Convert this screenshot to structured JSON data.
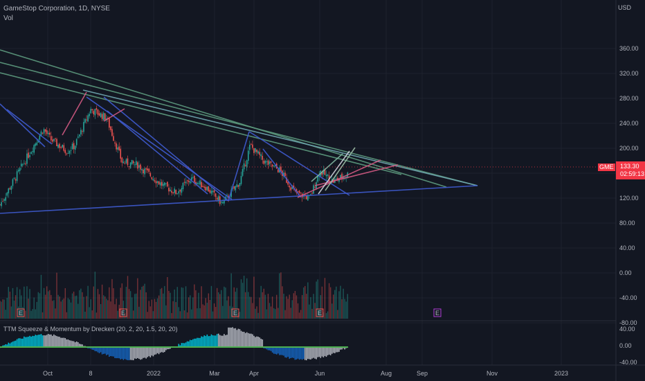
{
  "header": {
    "symbol": "GameStop Corporation, 1D, NYSE",
    "vol_label": "Vol",
    "indicator": "TTM Squeeze & Momentum by Drecken (20, 2, 20, 1.5, 20, 20)"
  },
  "price_axis": {
    "currency": "USD",
    "ticks": [
      "360.00",
      "320.00",
      "280.00",
      "240.00",
      "200.00",
      "160.00",
      "120.00",
      "80.00",
      "40.00",
      "0.00",
      "-40.00",
      "-80.00"
    ],
    "current_symbol": "GME",
    "current_price": "133.30",
    "countdown": "02:59:13"
  },
  "osc_axis": {
    "ticks": [
      "40.00",
      "0.00",
      "-40.00"
    ]
  },
  "time_axis": {
    "labels": [
      "Oct",
      "8",
      "2022",
      "Mar",
      "Apr",
      "Jun",
      "Aug",
      "Sep",
      "Nov",
      "2023"
    ]
  },
  "earnings_marker": "E",
  "colors": {
    "background": "#131722",
    "up": "#26a69a",
    "down": "#ef5350",
    "price_badge": "#f23645",
    "trend_blue": "#3f5bd0",
    "trend_green": "#5d9a7e",
    "trend_pink": "#d25a83",
    "earnings_future": "#b03dd6"
  },
  "chart_data": {
    "type": "candlestick",
    "title": "GameStop Corporation, 1D, NYSE",
    "ylim": [
      -110,
      380
    ],
    "price_path": [
      [
        "2021-09-20",
        190
      ],
      [
        "2021-09-27",
        215
      ],
      [
        "2021-10-04",
        195
      ],
      [
        "2021-10-18",
        175
      ],
      [
        "2021-10-25",
        185
      ],
      [
        "2021-11-08",
        250
      ],
      [
        "2021-11-22",
        235
      ],
      [
        "2021-12-06",
        155
      ],
      [
        "2021-12-20",
        150
      ],
      [
        "2022-01-10",
        115
      ],
      [
        "2022-01-24",
        100
      ],
      [
        "2022-02-07",
        125
      ],
      [
        "2022-02-21",
        110
      ],
      [
        "2022-03-07",
        80
      ],
      [
        "2022-03-21",
        120
      ],
      [
        "2022-03-29",
        185
      ],
      [
        "2022-04-11",
        155
      ],
      [
        "2022-04-25",
        140
      ],
      [
        "2022-05-09",
        100
      ],
      [
        "2022-05-23",
        90
      ],
      [
        "2022-06-01",
        140
      ],
      [
        "2022-06-13",
        120
      ],
      [
        "2022-06-27",
        133.3
      ]
    ],
    "current_price": 133.3,
    "oscillator_ylim": [
      -40,
      40
    ]
  }
}
